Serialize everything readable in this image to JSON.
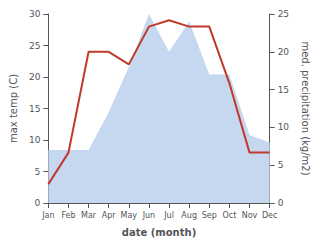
{
  "chart_data": {
    "type": "line",
    "categories": [
      "Jan",
      "Feb",
      "Mar",
      "Apr",
      "May",
      "Jun",
      "Jul",
      "Aug",
      "Sep",
      "Oct",
      "Nov",
      "Dec"
    ],
    "xlabel": "date (month)",
    "ylabel": "max temp (C)",
    "y2label": "med. precipitation (kg/m2)",
    "series": [
      {
        "type": "area",
        "axis": "y2",
        "color": "#c5d8f0",
        "values": [
          7,
          7,
          7,
          12,
          18,
          25,
          20,
          24,
          17,
          17,
          9,
          8
        ]
      },
      {
        "type": "line",
        "color": "#c0392b",
        "values": [
          3,
          8,
          24,
          24,
          22,
          28,
          29,
          28,
          28,
          19,
          8,
          8
        ]
      }
    ],
    "ylim": [
      0,
      30
    ],
    "yticks": [
      0,
      5,
      10,
      15,
      20,
      25,
      30
    ],
    "y2lim": [
      0,
      25
    ],
    "y2ticks": [
      0,
      5,
      10,
      15,
      20,
      25
    ],
    "grid": false
  }
}
